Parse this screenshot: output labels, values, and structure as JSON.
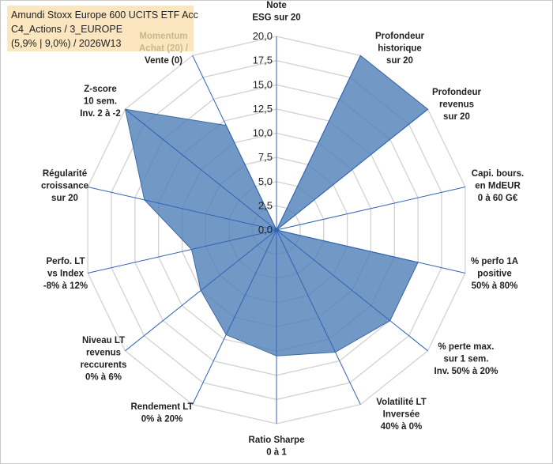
{
  "title_box": {
    "line1": "Amundi Stoxx Europe 600 UCITS ETF Acc",
    "line2": "C4_Actions / 3_EUROPE",
    "line3": "(5,9% | 9,0%) / 2026W13"
  },
  "chart_data": {
    "type": "radar",
    "title": "Amundi Stoxx Europe 600 UCITS ETF Acc",
    "rlim": [
      0,
      20
    ],
    "rticks": [
      "0,0",
      "2,5",
      "5,0",
      "7,5",
      "10,0",
      "12,5",
      "15,0",
      "17,5",
      "20,0"
    ],
    "grid": true,
    "axes": [
      {
        "lines": [
          "Note",
          "ESG sur 20"
        ]
      },
      {
        "lines": [
          "Profondeur",
          "historique",
          "sur 20"
        ]
      },
      {
        "lines": [
          "Profondeur",
          "revenus",
          "sur 20"
        ]
      },
      {
        "lines": [
          "Capi. bours.",
          "en MdEUR",
          "0 à 60 G€"
        ]
      },
      {
        "lines": [
          "% perfo 1A",
          "positive",
          "50% à 80%"
        ]
      },
      {
        "lines": [
          "% perte max.",
          "sur 1 sem.",
          "Inv. 50% à 20%"
        ]
      },
      {
        "lines": [
          "Volatilité LT",
          "Inversée",
          "40% à 0%"
        ]
      },
      {
        "lines": [
          "Ratio Sharpe",
          "0 à 1"
        ]
      },
      {
        "lines": [
          "Rendement LT",
          "0% à 20%"
        ]
      },
      {
        "lines": [
          "Niveau LT",
          "revenus",
          "reccurents",
          "0% à 6%"
        ]
      },
      {
        "lines": [
          "Perfo. LT",
          "vs Index",
          "-8% à 12%"
        ]
      },
      {
        "lines": [
          "Régularité",
          "croissance",
          "sur 20"
        ]
      },
      {
        "lines": [
          "Z-score",
          "10 sem.",
          "Inv. 2 à -2"
        ]
      },
      {
        "lines": [
          "Momentum",
          "Achat (20) /",
          "Vente (0)"
        ]
      }
    ],
    "series": [
      {
        "name": "Amundi Stoxx Europe 600 UCITS ETF Acc",
        "color": "#4f7fb8",
        "values": [
          0,
          20,
          20,
          0,
          15,
          15,
          14,
          13,
          12,
          10,
          9,
          14,
          20,
          12
        ]
      }
    ]
  }
}
